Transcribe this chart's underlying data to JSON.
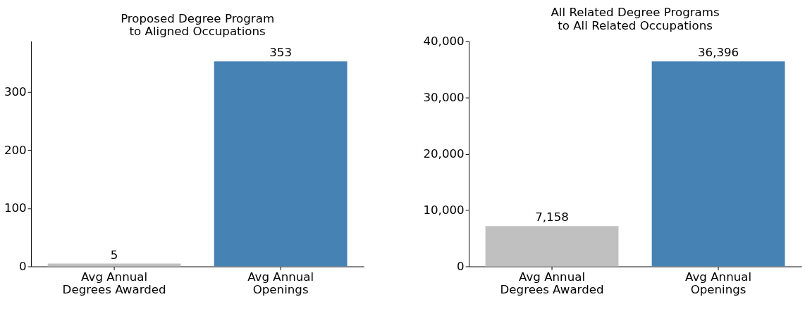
{
  "chart_data": [
    {
      "type": "bar",
      "title": "Proposed Degree Program\nto Aligned Occupations",
      "categories": [
        "Avg Annual\nDegrees Awarded",
        "Avg Annual\nOpenings"
      ],
      "values": [
        5,
        353
      ],
      "colors": [
        "#c0c0c0",
        "#4682b4"
      ],
      "ylim": [
        0,
        388
      ],
      "yticks": [
        0,
        100,
        200,
        300
      ],
      "data_labels": true,
      "grid": false
    },
    {
      "type": "bar",
      "title": "All Related Degree Programs\nto All Related Occupations",
      "categories": [
        "Avg Annual\nDegrees Awarded",
        "Avg Annual\nOpenings"
      ],
      "values": [
        7158,
        36396
      ],
      "value_labels": [
        "7,158",
        "36,396"
      ],
      "colors": [
        "#c0c0c0",
        "#4682b4"
      ],
      "ylim": [
        0,
        40000
      ],
      "yticks": [
        0,
        {
          "value": 10000,
          "label": "10,000"
        },
        {
          "value": 20000,
          "label": "20,000"
        },
        {
          "value": 30000,
          "label": "30,000"
        },
        {
          "value": 40000,
          "label": "40,000"
        }
      ],
      "grid": false
    }
  ]
}
